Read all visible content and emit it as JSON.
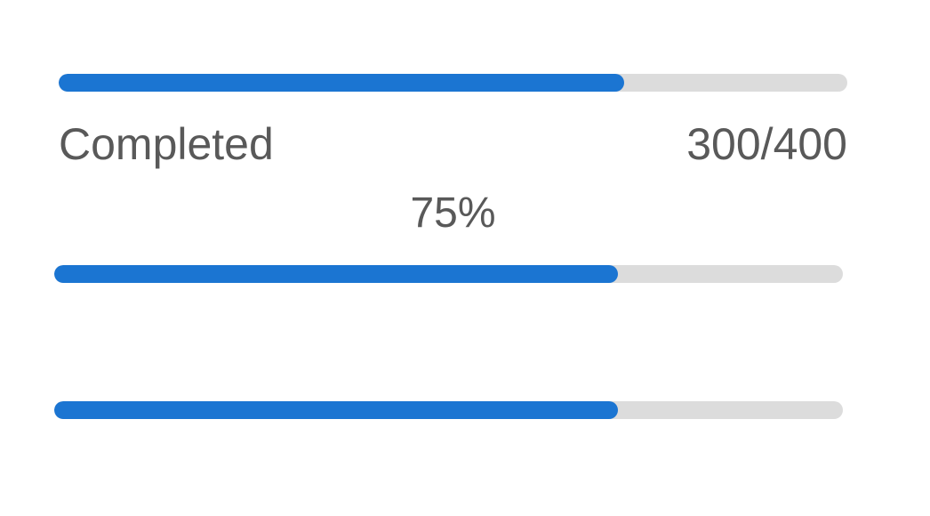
{
  "colors": {
    "bar_fill": "#1b75d2",
    "bar_track": "#dcdcdc",
    "label_text": "#595959",
    "background": "#ffffff"
  },
  "progress_bars": [
    {
      "name": "completed",
      "label": "Completed",
      "value_label": "300/400",
      "percent_label": "75%",
      "fill_percent": 71.7
    },
    {
      "name": "bar-2",
      "fill_percent": 71.5
    },
    {
      "name": "bar-3",
      "fill_percent": 71.5
    }
  ]
}
